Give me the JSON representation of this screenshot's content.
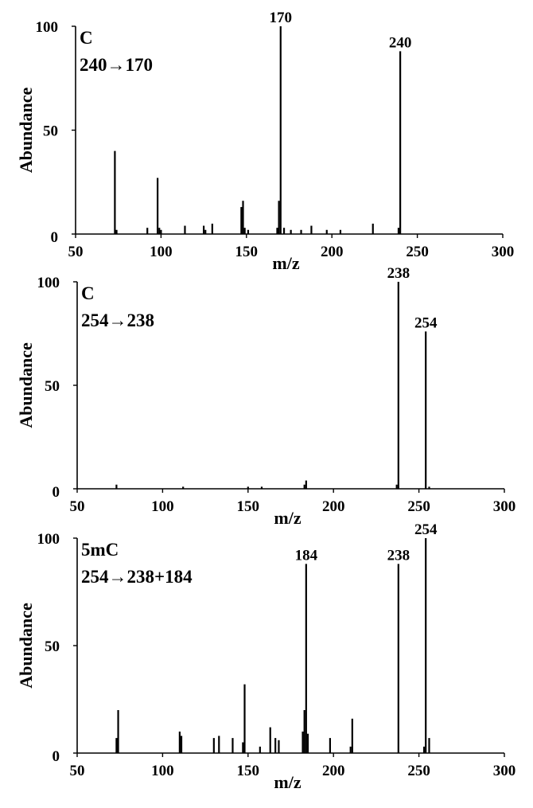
{
  "chart_data": [
    {
      "type": "bar",
      "title": "C",
      "subtitle": "240→170",
      "xlabel": "m/z",
      "ylabel": "Abundance",
      "xlim": [
        50,
        300
      ],
      "ylim": [
        0,
        100
      ],
      "xticks": [
        50,
        100,
        150,
        200,
        250,
        300
      ],
      "yticks": [
        0,
        50,
        100
      ],
      "peaks": [
        {
          "x": 73,
          "y": 40
        },
        {
          "x": 74,
          "y": 2
        },
        {
          "x": 92,
          "y": 3
        },
        {
          "x": 98,
          "y": 27
        },
        {
          "x": 99,
          "y": 3
        },
        {
          "x": 100,
          "y": 2
        },
        {
          "x": 114,
          "y": 4
        },
        {
          "x": 125,
          "y": 4
        },
        {
          "x": 126,
          "y": 2
        },
        {
          "x": 130,
          "y": 5
        },
        {
          "x": 147,
          "y": 13
        },
        {
          "x": 148,
          "y": 16
        },
        {
          "x": 149,
          "y": 3
        },
        {
          "x": 151,
          "y": 2
        },
        {
          "x": 168,
          "y": 3
        },
        {
          "x": 169,
          "y": 16
        },
        {
          "x": 170,
          "y": 100
        },
        {
          "x": 172,
          "y": 3
        },
        {
          "x": 176,
          "y": 2
        },
        {
          "x": 182,
          "y": 2
        },
        {
          "x": 188,
          "y": 4
        },
        {
          "x": 197,
          "y": 2
        },
        {
          "x": 205,
          "y": 2
        },
        {
          "x": 224,
          "y": 5
        },
        {
          "x": 239,
          "y": 3
        },
        {
          "x": 240,
          "y": 88
        }
      ],
      "annotations": [
        {
          "x": 170,
          "y": 100,
          "text": "170"
        },
        {
          "x": 240,
          "y": 88,
          "text": "240"
        }
      ]
    },
    {
      "type": "bar",
      "title": "C",
      "subtitle": "254→238",
      "xlabel": "m/z",
      "ylabel": "Abundance",
      "xlim": [
        50,
        300
      ],
      "ylim": [
        0,
        100
      ],
      "xticks": [
        50,
        100,
        150,
        200,
        250,
        300
      ],
      "yticks": [
        0,
        50,
        100
      ],
      "peaks": [
        {
          "x": 73,
          "y": 2
        },
        {
          "x": 112,
          "y": 1
        },
        {
          "x": 150,
          "y": 1
        },
        {
          "x": 158,
          "y": 1
        },
        {
          "x": 183,
          "y": 2
        },
        {
          "x": 184,
          "y": 4
        },
        {
          "x": 237,
          "y": 2
        },
        {
          "x": 238,
          "y": 100
        },
        {
          "x": 254,
          "y": 76
        },
        {
          "x": 256,
          "y": 1
        }
      ],
      "annotations": [
        {
          "x": 238,
          "y": 100,
          "text": "238"
        },
        {
          "x": 254,
          "y": 76,
          "text": "254"
        }
      ]
    },
    {
      "type": "bar",
      "title": "5mC",
      "subtitle": "254→238+184",
      "xlabel": "m/z",
      "ylabel": "Abundance",
      "xlim": [
        50,
        300
      ],
      "ylim": [
        0,
        100
      ],
      "xticks": [
        50,
        100,
        150,
        200,
        250,
        300
      ],
      "yticks": [
        0,
        50,
        100
      ],
      "peaks": [
        {
          "x": 73,
          "y": 7
        },
        {
          "x": 74,
          "y": 20
        },
        {
          "x": 110,
          "y": 10
        },
        {
          "x": 111,
          "y": 8
        },
        {
          "x": 130,
          "y": 7
        },
        {
          "x": 133,
          "y": 8
        },
        {
          "x": 141,
          "y": 7
        },
        {
          "x": 147,
          "y": 5
        },
        {
          "x": 148,
          "y": 32
        },
        {
          "x": 157,
          "y": 3
        },
        {
          "x": 163,
          "y": 12
        },
        {
          "x": 166,
          "y": 7
        },
        {
          "x": 168,
          "y": 6
        },
        {
          "x": 182,
          "y": 10
        },
        {
          "x": 183,
          "y": 20
        },
        {
          "x": 184,
          "y": 88
        },
        {
          "x": 185,
          "y": 9
        },
        {
          "x": 198,
          "y": 7
        },
        {
          "x": 210,
          "y": 3
        },
        {
          "x": 211,
          "y": 16
        },
        {
          "x": 238,
          "y": 88
        },
        {
          "x": 253,
          "y": 3
        },
        {
          "x": 254,
          "y": 100
        },
        {
          "x": 256,
          "y": 7
        }
      ],
      "annotations": [
        {
          "x": 184,
          "y": 88,
          "text": "184"
        },
        {
          "x": 238,
          "y": 88,
          "text": "238"
        },
        {
          "x": 254,
          "y": 100,
          "text": "254"
        }
      ]
    }
  ]
}
